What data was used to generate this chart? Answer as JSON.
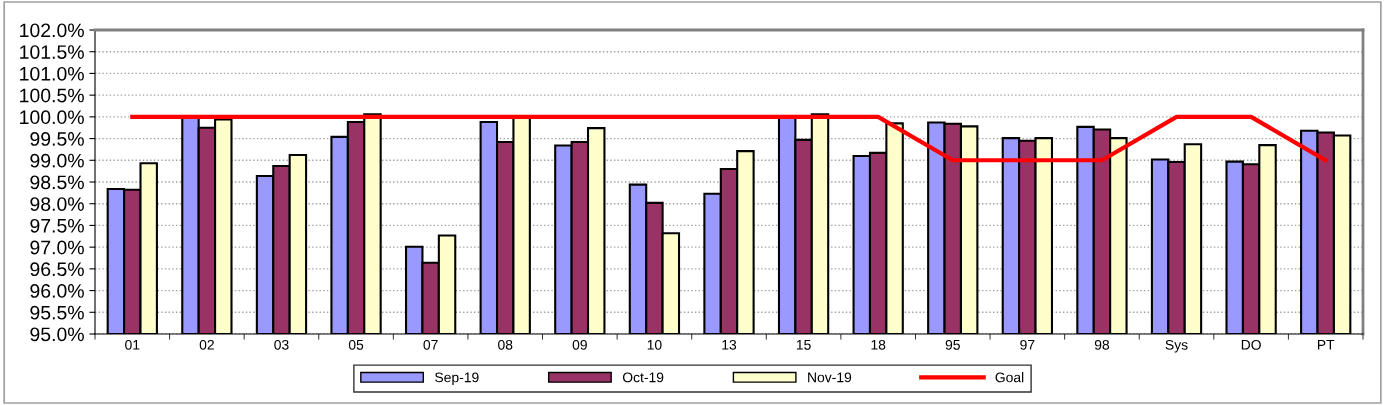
{
  "chart_data": {
    "type": "bar",
    "categories": [
      "01",
      "02",
      "03",
      "05",
      "07",
      "08",
      "09",
      "10",
      "13",
      "15",
      "18",
      "95",
      "97",
      "98",
      "Sys",
      "DO",
      "PT"
    ],
    "series": [
      {
        "name": "Sep-19",
        "color": "#9999ff",
        "values": [
          98.34,
          100.0,
          98.64,
          99.54,
          97.01,
          99.88,
          99.34,
          98.44,
          98.23,
          100.0,
          99.1,
          99.87,
          99.51,
          99.77,
          99.02,
          98.97,
          99.68
        ]
      },
      {
        "name": "Oct-19",
        "color": "#993366",
        "values": [
          98.32,
          99.75,
          98.87,
          99.88,
          96.64,
          99.42,
          99.42,
          98.02,
          98.8,
          99.47,
          99.17,
          99.84,
          99.45,
          99.71,
          98.96,
          98.91,
          99.64
        ]
      },
      {
        "name": "Nov-19",
        "color": "#ffffcc",
        "values": [
          98.93,
          99.94,
          99.12,
          100.06,
          97.27,
          100.0,
          99.74,
          97.32,
          99.21,
          100.06,
          99.85,
          99.78,
          99.51,
          99.51,
          99.37,
          99.35,
          99.57
        ]
      },
      {
        "name": "Goal",
        "type": "line",
        "color": "#ff0000",
        "values": [
          100,
          100,
          100,
          100,
          100,
          100,
          100,
          100,
          100,
          100,
          100,
          99,
          99,
          99,
          100,
          100,
          99
        ]
      }
    ],
    "ylim": [
      95,
      102
    ],
    "yticks": [
      {
        "value": 95,
        "label": "95.0%"
      },
      {
        "value": 95.5,
        "label": "95.5%"
      },
      {
        "value": 96,
        "label": "96.0%"
      },
      {
        "value": 96.5,
        "label": "96.5%"
      },
      {
        "value": 97,
        "label": "97.0%"
      },
      {
        "value": 97.5,
        "label": "97.5%"
      },
      {
        "value": 98,
        "label": "98.0%"
      },
      {
        "value": 98.5,
        "label": "98.5%"
      },
      {
        "value": 99,
        "label": "99.0%"
      },
      {
        "value": 99.5,
        "label": "99.5%"
      },
      {
        "value": 100,
        "label": "100.0%"
      },
      {
        "value": 100.5,
        "label": "100.5%"
      },
      {
        "value": 101,
        "label": "101.0%"
      },
      {
        "value": 101.5,
        "label": "101.5%"
      },
      {
        "value": 102,
        "label": "102.0%"
      }
    ],
    "grid": "y",
    "legend": "bottom",
    "marker": "none",
    "line_style": "solid"
  }
}
